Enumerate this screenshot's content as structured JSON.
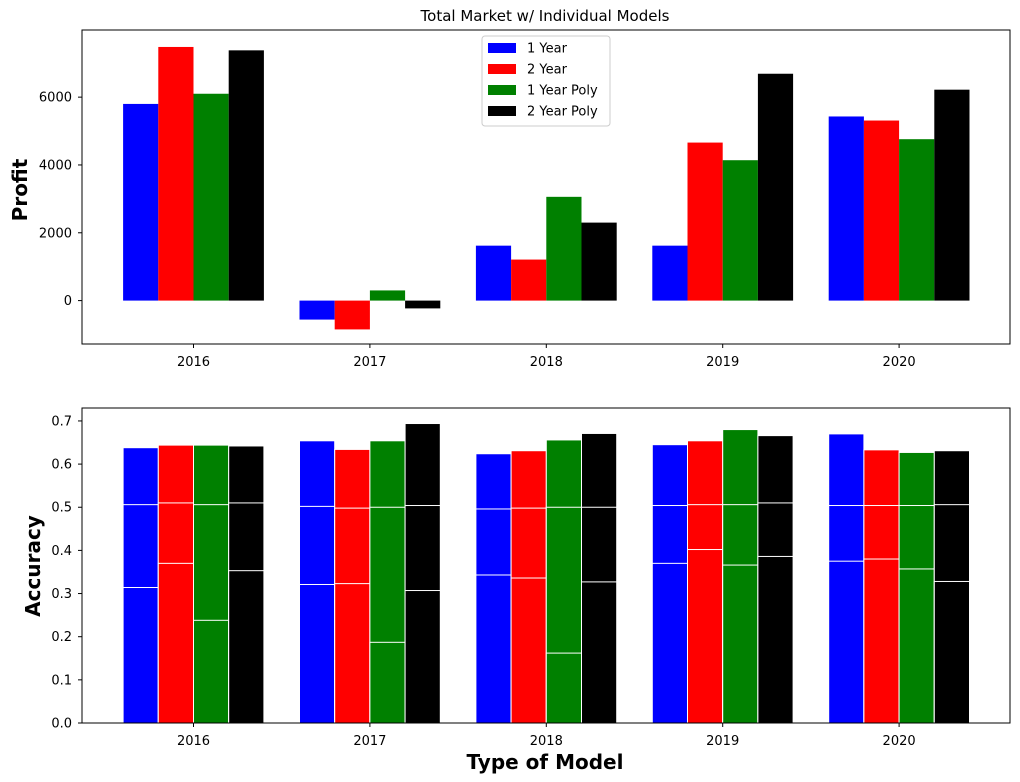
{
  "chart_data": [
    {
      "type": "bar",
      "title": "Total Market w/ Individual Models",
      "xlabel": "",
      "ylabel": "Profit",
      "categories": [
        "2016",
        "2017",
        "2018",
        "2019",
        "2020"
      ],
      "ylim": [
        -1280,
        7980
      ],
      "yticks": [
        0,
        2000,
        4000,
        6000
      ],
      "legend_position": "top-center",
      "series": [
        {
          "name": "1 Year",
          "color": "#0000ff",
          "values": [
            5800,
            -560,
            1620,
            1620,
            5430
          ]
        },
        {
          "name": "2 Year",
          "color": "#ff0000",
          "values": [
            7480,
            -850,
            1210,
            4660,
            5310
          ]
        },
        {
          "name": "1 Year Poly",
          "color": "#008000",
          "values": [
            6100,
            300,
            3060,
            4140,
            4760
          ]
        },
        {
          "name": "2 Year Poly",
          "color": "#000000",
          "values": [
            7380,
            -230,
            2300,
            6690,
            6220
          ]
        }
      ]
    },
    {
      "type": "bar",
      "title": "",
      "xlabel": "Type of Model",
      "ylabel": "Accuracy",
      "categories": [
        "2016",
        "2017",
        "2018",
        "2019",
        "2020"
      ],
      "ylim": [
        0,
        0.73
      ],
      "yticks": [
        0.0,
        0.1,
        0.2,
        0.3,
        0.4,
        0.5,
        0.6,
        0.7
      ],
      "stacked_overlay": true,
      "series": [
        {
          "color": "#0000ff",
          "values": [
            [
              0.638,
              0.506,
              0.314
            ],
            [
              0.654,
              0.502,
              0.321
            ],
            [
              0.624,
              0.496,
              0.343
            ],
            [
              0.645,
              0.504,
              0.37
            ],
            [
              0.67,
              0.504,
              0.375
            ]
          ]
        },
        {
          "color": "#ff0000",
          "values": [
            [
              0.644,
              0.51,
              0.37
            ],
            [
              0.634,
              0.498,
              0.323
            ],
            [
              0.631,
              0.498,
              0.336
            ],
            [
              0.654,
              0.506,
              0.402
            ],
            [
              0.633,
              0.504,
              0.38
            ]
          ]
        },
        {
          "color": "#008000",
          "values": [
            [
              0.644,
              0.506,
              0.238
            ],
            [
              0.654,
              0.5,
              0.187
            ],
            [
              0.656,
              0.5,
              0.162
            ],
            [
              0.68,
              0.506,
              0.366
            ],
            [
              0.627,
              0.504,
              0.357
            ]
          ]
        },
        {
          "color": "#000000",
          "values": [
            [
              0.642,
              0.51,
              0.353
            ],
            [
              0.694,
              0.504,
              0.307
            ],
            [
              0.671,
              0.5,
              0.327
            ],
            [
              0.666,
              0.51,
              0.386
            ],
            [
              0.631,
              0.506,
              0.328
            ]
          ]
        }
      ]
    }
  ]
}
